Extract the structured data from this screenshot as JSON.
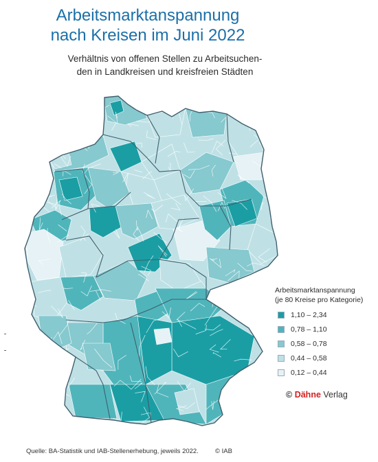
{
  "title_line1": "Arbeitsmarktanspannung",
  "title_line2": "nach Kreisen im Juni 2022",
  "subtitle_line1": "Verhältnis von offenen Stellen zu Arbeitsuchen-",
  "subtitle_line2": "den in Landkreisen und kreisfreien Städten",
  "legend": {
    "title_line1": "Arbeitsmarktanspannung",
    "title_line2": "(je 80 Kreise pro Kategorie)",
    "items": [
      {
        "label": "1,10 – 2,34",
        "color": "#1a9ea4"
      },
      {
        "label": "0,78 – 1,10",
        "color": "#4fb5bb"
      },
      {
        "label": "0,58 – 0,78",
        "color": "#86c9cf"
      },
      {
        "label": "0,44 – 0,58",
        "color": "#bfe1e6"
      },
      {
        "label": "0,12 – 0,44",
        "color": "#e6f2f5"
      }
    ]
  },
  "brand": {
    "copyright": "©",
    "name": "Dähne",
    "suffix": "Verlag"
  },
  "source": "Quelle: BA-Statistik und IAB-Stellenerhebung, jeweils 2022.",
  "iab": "© IAB"
}
